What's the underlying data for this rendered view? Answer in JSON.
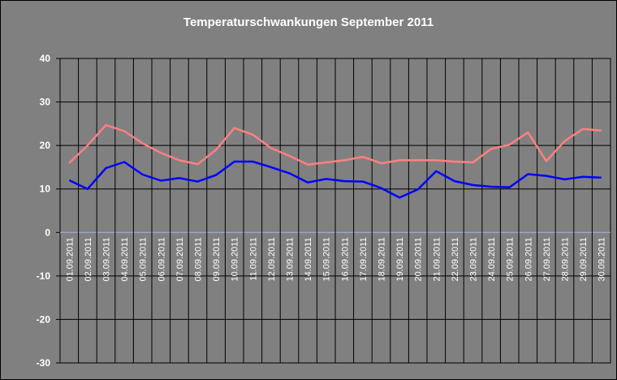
{
  "chart_data": {
    "type": "line",
    "title": "Temperaturschwankungen September 2011",
    "xlabel": "",
    "ylabel": "",
    "ylim": [
      -30,
      40
    ],
    "yticks": [
      -30,
      -20,
      -10,
      0,
      10,
      20,
      30,
      40
    ],
    "grid": true,
    "legend": "none",
    "categories": [
      "01.09.2011",
      "02.09.2011",
      "03.09.2011",
      "04.09.2011",
      "05.09.2011",
      "06.09.2011",
      "07.09.2011",
      "08.09.2011",
      "09.09.2011",
      "10.09.2011",
      "11.09.2011",
      "12.09.2011",
      "13.09.2011",
      "14.09.2011",
      "15.09.2011",
      "16.09.2011",
      "17.09.2011",
      "18.09.2011",
      "19.09.2011",
      "20.09.2011",
      "21.09.2011",
      "22.09.2011",
      "23.09.2011",
      "24.09.2011",
      "25.09.2011",
      "26.09.2011",
      "27.09.2011",
      "28.09.2011",
      "29.09.2011",
      "30.09.2011"
    ],
    "series": [
      {
        "color": "#ff8080",
        "values": [
          16.0,
          20.0,
          24.7,
          23.3,
          20.5,
          18.3,
          16.6,
          15.7,
          19.0,
          24.0,
          22.5,
          19.4,
          17.6,
          15.6,
          16.1,
          16.6,
          17.4,
          15.9,
          16.6,
          16.6,
          16.6,
          16.3,
          16.1,
          19.2,
          20.2,
          23.0,
          16.4,
          21.0,
          23.8,
          23.4
        ]
      },
      {
        "color": "#0000ff",
        "values": [
          12.0,
          10.0,
          14.8,
          16.2,
          13.3,
          11.9,
          12.5,
          11.7,
          13.2,
          16.3,
          16.3,
          15.0,
          13.6,
          11.5,
          12.3,
          11.8,
          11.7,
          10.2,
          8.0,
          9.9,
          14.1,
          11.8,
          10.9,
          10.5,
          10.4,
          13.4,
          13.0,
          12.2,
          12.8,
          12.6
        ]
      }
    ]
  },
  "colors": {
    "background": "#808080",
    "grid": "#000000",
    "zero_line": "#9fb6e3",
    "text": "#ffffff"
  }
}
